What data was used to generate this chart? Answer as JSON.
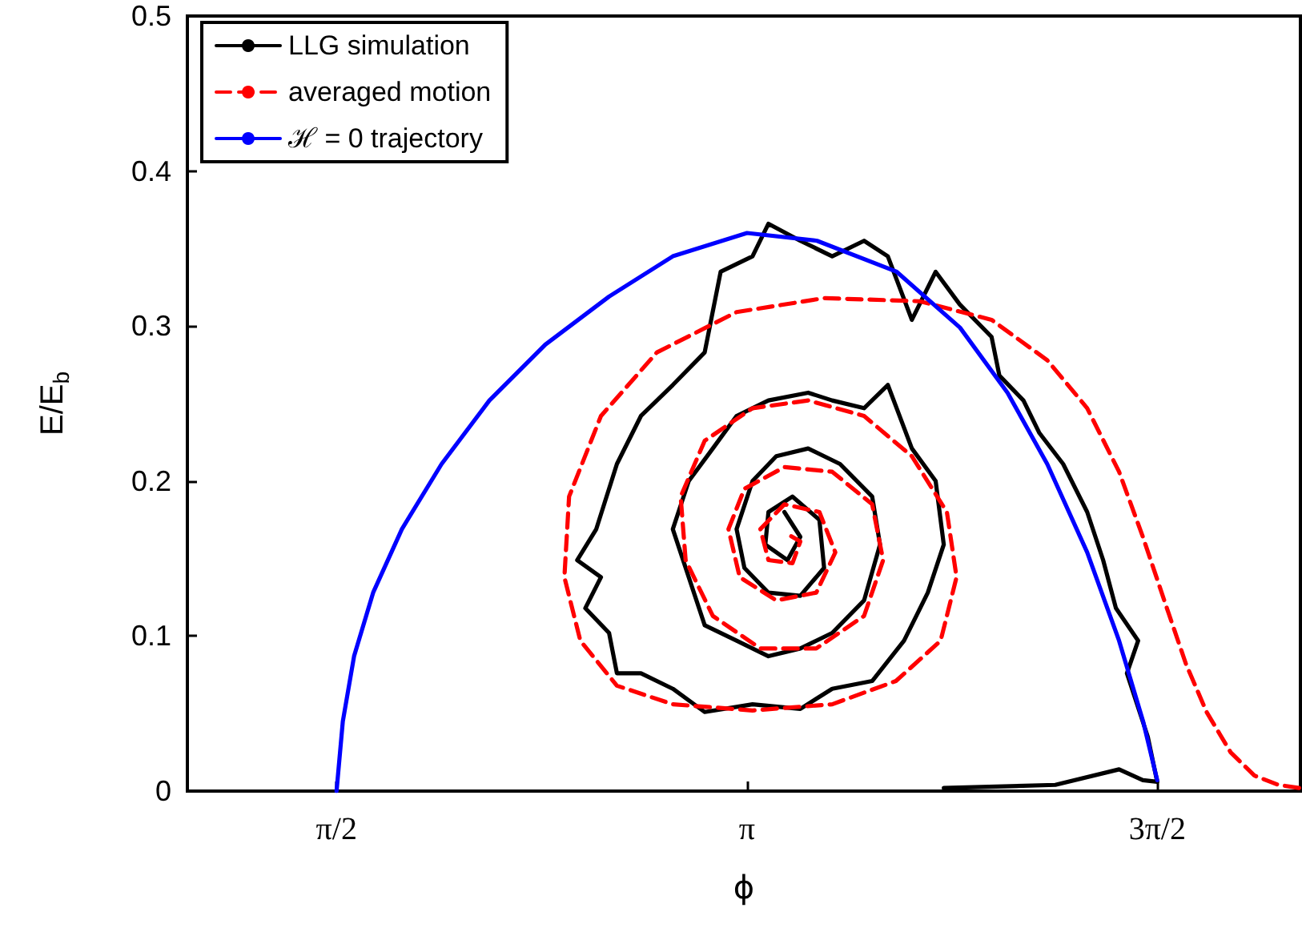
{
  "chart_data": {
    "type": "line",
    "xlabel": "ϕ",
    "ylabel": "E/E$_{b}$",
    "xlim": [
      1.0,
      5.26
    ],
    "xticks": [
      {
        "value": 1.5708,
        "label": "π/2"
      },
      {
        "value": 3.1416,
        "label": "π"
      },
      {
        "value": 4.7124,
        "label": "3π/2"
      }
    ],
    "ylim": [
      0,
      0.5
    ],
    "yticks": [
      0,
      0.1,
      0.2,
      0.3,
      0.4,
      0.5
    ],
    "grid": false,
    "legend": "top left",
    "marker": "none",
    "series": [
      {
        "name": "LLG simulation",
        "color": "#000000",
        "line_style": "solid",
        "x": [
          3.895,
          4.322,
          4.566,
          4.657,
          4.712,
          4.676,
          4.596,
          4.639,
          4.554,
          4.505,
          4.444,
          4.352,
          4.261,
          4.2,
          4.108,
          4.078,
          3.956,
          3.864,
          3.773,
          3.681,
          3.59,
          3.468,
          3.346,
          3.224,
          3.163,
          3.041,
          2.98,
          2.858,
          2.736,
          2.644,
          2.565,
          2.492,
          2.583,
          2.523,
          2.614,
          2.644,
          2.736,
          2.858,
          2.98,
          3.163,
          3.346,
          3.468,
          3.621,
          3.743,
          3.834,
          3.895,
          3.864,
          3.773,
          3.681,
          3.59,
          3.468,
          3.376,
          3.224,
          3.102,
          3.011,
          2.919,
          2.858,
          2.919,
          2.98,
          3.102,
          3.224,
          3.346,
          3.468,
          3.59,
          3.651,
          3.621,
          3.498,
          3.376,
          3.254,
          3.163,
          3.102,
          3.132,
          3.224,
          3.346,
          3.437,
          3.419,
          3.316,
          3.224,
          3.212,
          3.297,
          3.346,
          3.285
        ],
        "values": [
          0.002,
          0.004,
          0.014,
          0.007,
          0.006,
          0.035,
          0.076,
          0.097,
          0.118,
          0.149,
          0.18,
          0.211,
          0.231,
          0.252,
          0.268,
          0.293,
          0.314,
          0.335,
          0.304,
          0.345,
          0.355,
          0.345,
          0.355,
          0.366,
          0.345,
          0.335,
          0.283,
          0.262,
          0.242,
          0.211,
          0.169,
          0.149,
          0.138,
          0.118,
          0.102,
          0.076,
          0.076,
          0.066,
          0.051,
          0.056,
          0.053,
          0.066,
          0.071,
          0.097,
          0.128,
          0.159,
          0.2,
          0.221,
          0.262,
          0.247,
          0.252,
          0.257,
          0.252,
          0.242,
          0.221,
          0.2,
          0.169,
          0.138,
          0.107,
          0.097,
          0.087,
          0.092,
          0.102,
          0.123,
          0.159,
          0.19,
          0.211,
          0.221,
          0.216,
          0.2,
          0.169,
          0.144,
          0.128,
          0.126,
          0.144,
          0.175,
          0.19,
          0.18,
          0.159,
          0.149,
          0.164,
          0.18
        ]
      },
      {
        "name": "averaged motion",
        "color": "#ff0000",
        "line_style": "dashed",
        "x": [
          5.255,
          5.176,
          5.084,
          4.993,
          4.901,
          4.822,
          4.749,
          4.657,
          4.566,
          4.444,
          4.291,
          4.078,
          3.803,
          3.437,
          3.102,
          2.797,
          2.583,
          2.461,
          2.443,
          2.504,
          2.644,
          2.858,
          3.163,
          3.468,
          3.712,
          3.883,
          3.944,
          3.907,
          3.773,
          3.59,
          3.376,
          3.163,
          2.98,
          2.888,
          2.907,
          3.011,
          3.193,
          3.407,
          3.59,
          3.663,
          3.621,
          3.468,
          3.285,
          3.132,
          3.071,
          3.114,
          3.254,
          3.407,
          3.48,
          3.419,
          3.285,
          3.193,
          3.224,
          3.316,
          3.346,
          3.285
        ],
        "values": [
          0.002,
          0.004,
          0.01,
          0.025,
          0.051,
          0.082,
          0.118,
          0.164,
          0.206,
          0.247,
          0.278,
          0.304,
          0.316,
          0.318,
          0.309,
          0.283,
          0.242,
          0.19,
          0.138,
          0.097,
          0.068,
          0.056,
          0.052,
          0.056,
          0.071,
          0.097,
          0.138,
          0.18,
          0.216,
          0.242,
          0.252,
          0.247,
          0.226,
          0.19,
          0.149,
          0.113,
          0.092,
          0.092,
          0.113,
          0.149,
          0.185,
          0.206,
          0.209,
          0.195,
          0.169,
          0.138,
          0.123,
          0.128,
          0.154,
          0.18,
          0.185,
          0.169,
          0.149,
          0.147,
          0.161,
          0.167
        ]
      },
      {
        "name": "ℋ = 0 trajectory",
        "color": "#0000ff",
        "line_style": "solid",
        "x": [
          1.571,
          1.595,
          1.638,
          1.711,
          1.821,
          1.973,
          2.156,
          2.37,
          2.614,
          2.858,
          3.142,
          3.41,
          3.715,
          3.957,
          4.139,
          4.291,
          4.444,
          4.566,
          4.658,
          4.712
        ],
        "values": [
          0,
          0.045,
          0.087,
          0.128,
          0.169,
          0.211,
          0.252,
          0.288,
          0.319,
          0.345,
          0.36,
          0.355,
          0.335,
          0.299,
          0.257,
          0.211,
          0.154,
          0.097,
          0.045,
          0.007
        ]
      }
    ]
  }
}
